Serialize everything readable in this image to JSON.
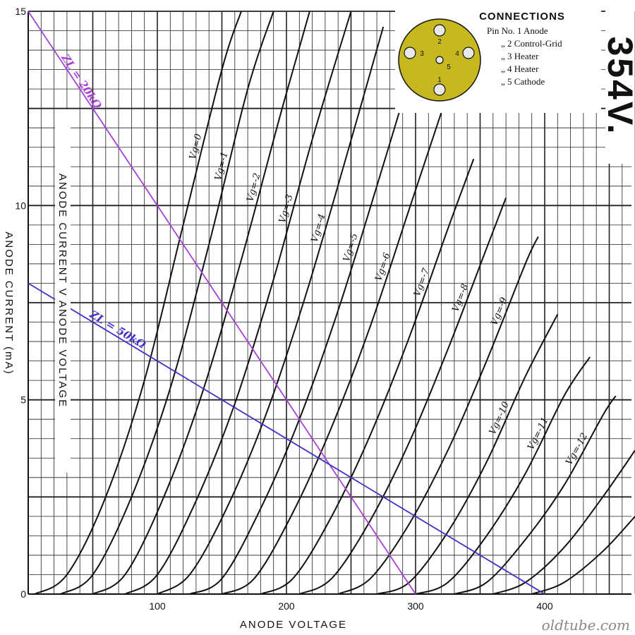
{
  "chart_data": {
    "type": "line",
    "title": "ANODE CURRENT V ANODE VOLTAGE",
    "xlabel": "ANODE VOLTAGE",
    "ylabel": "ANODE CURRENT (mA)",
    "xlim": [
      0,
      470
    ],
    "ylim": [
      0,
      15
    ],
    "x_ticks": [
      "100",
      "200",
      "300",
      "400"
    ],
    "y_ticks": [
      "0",
      "5",
      "10",
      "15"
    ],
    "grid": true,
    "tube": "354V",
    "series": [
      {
        "name": "Vg=0",
        "values": [
          [
            5,
            0
          ],
          [
            30,
            0.5
          ],
          [
            60,
            2.5
          ],
          [
            90,
            5.5
          ],
          [
            120,
            9.5
          ],
          [
            150,
            13.5
          ],
          [
            165,
            15
          ]
        ]
      },
      {
        "name": "Vg=-1",
        "values": [
          [
            25,
            0
          ],
          [
            50,
            0.5
          ],
          [
            80,
            2.5
          ],
          [
            110,
            5.3
          ],
          [
            140,
            9
          ],
          [
            170,
            13
          ],
          [
            190,
            15
          ]
        ]
      },
      {
        "name": "Vg=-2",
        "values": [
          [
            50,
            0
          ],
          [
            75,
            0.5
          ],
          [
            105,
            2.5
          ],
          [
            135,
            5.2
          ],
          [
            165,
            8.6
          ],
          [
            195,
            12.3
          ],
          [
            218,
            15
          ]
        ]
      },
      {
        "name": "Vg=-3",
        "values": [
          [
            75,
            0
          ],
          [
            100,
            0.5
          ],
          [
            130,
            2.4
          ],
          [
            160,
            4.9
          ],
          [
            190,
            8.1
          ],
          [
            220,
            11.7
          ],
          [
            250,
            15
          ]
        ]
      },
      {
        "name": "Vg=-4",
        "values": [
          [
            100,
            0
          ],
          [
            125,
            0.5
          ],
          [
            155,
            2.3
          ],
          [
            185,
            4.7
          ],
          [
            215,
            7.7
          ],
          [
            245,
            11.1
          ],
          [
            275,
            14.6
          ]
        ]
      },
      {
        "name": "Vg=-5",
        "values": [
          [
            125,
            0
          ],
          [
            150,
            0.4
          ],
          [
            180,
            2.2
          ],
          [
            210,
            4.5
          ],
          [
            240,
            7.3
          ],
          [
            270,
            10.5
          ],
          [
            300,
            13.8
          ]
        ]
      },
      {
        "name": "Vg=-6",
        "values": [
          [
            150,
            0
          ],
          [
            175,
            0.4
          ],
          [
            205,
            2.1
          ],
          [
            235,
            4.3
          ],
          [
            265,
            6.9
          ],
          [
            295,
            9.9
          ],
          [
            320,
            12.4
          ]
        ]
      },
      {
        "name": "Vg=-7",
        "values": [
          [
            180,
            0
          ],
          [
            205,
            0.4
          ],
          [
            235,
            2
          ],
          [
            265,
            4.1
          ],
          [
            295,
            6.6
          ],
          [
            325,
            9.4
          ],
          [
            345,
            11.2
          ]
        ]
      },
      {
        "name": "Vg=-8",
        "values": [
          [
            210,
            0
          ],
          [
            235,
            0.4
          ],
          [
            265,
            1.9
          ],
          [
            295,
            3.9
          ],
          [
            325,
            6.3
          ],
          [
            355,
            8.9
          ],
          [
            370,
            10.2
          ]
        ]
      },
      {
        "name": "Vg=-9",
        "values": [
          [
            240,
            0
          ],
          [
            265,
            0.4
          ],
          [
            295,
            1.8
          ],
          [
            325,
            3.7
          ],
          [
            355,
            6
          ],
          [
            385,
            8.5
          ],
          [
            395,
            9.2
          ]
        ]
      },
      {
        "name": "Vg=-10",
        "values": [
          [
            270,
            0
          ],
          [
            295,
            0.3
          ],
          [
            325,
            1.6
          ],
          [
            355,
            3.4
          ],
          [
            385,
            5.6
          ],
          [
            410,
            7.2
          ]
        ]
      },
      {
        "name": "Vg=-11",
        "values": [
          [
            300,
            0
          ],
          [
            325,
            0.3
          ],
          [
            355,
            1.5
          ],
          [
            385,
            3.1
          ],
          [
            415,
            5.1
          ],
          [
            435,
            6.1
          ]
        ]
      },
      {
        "name": "Vg=-12",
        "values": [
          [
            330,
            0
          ],
          [
            355,
            0.3
          ],
          [
            385,
            1.4
          ],
          [
            415,
            2.8
          ],
          [
            445,
            4.6
          ],
          [
            455,
            5.1
          ]
        ]
      },
      {
        "name": "",
        "values": [
          [
            360,
            0
          ],
          [
            385,
            0.3
          ],
          [
            415,
            1.2
          ],
          [
            445,
            2.5
          ],
          [
            470,
            3.7
          ]
        ]
      },
      {
        "name": "",
        "values": [
          [
            390,
            0
          ],
          [
            415,
            0.3
          ],
          [
            445,
            1.1
          ],
          [
            470,
            2
          ]
        ]
      }
    ],
    "load_lines": [
      {
        "name": "ZL = 20kΩ",
        "color": "#a640d8",
        "points": [
          [
            0,
            15
          ],
          [
            300,
            0
          ]
        ]
      },
      {
        "name": "ZL = 50kΩ",
        "color": "#4030c8",
        "points": [
          [
            0,
            8
          ],
          [
            400,
            0
          ]
        ]
      }
    ]
  },
  "connections": {
    "title": "CONNECTIONS",
    "items": [
      "Pin No. 1 Anode",
      "„ 2 Control-Grid",
      "„ 3 Heater",
      "„ 4 Heater",
      "„ 5 Cathode"
    ],
    "pins": [
      "1",
      "2",
      "3",
      "4",
      "5"
    ],
    "base_color": "#c8b820"
  },
  "tube_name": "354V.",
  "watermark": "oldtube.com"
}
